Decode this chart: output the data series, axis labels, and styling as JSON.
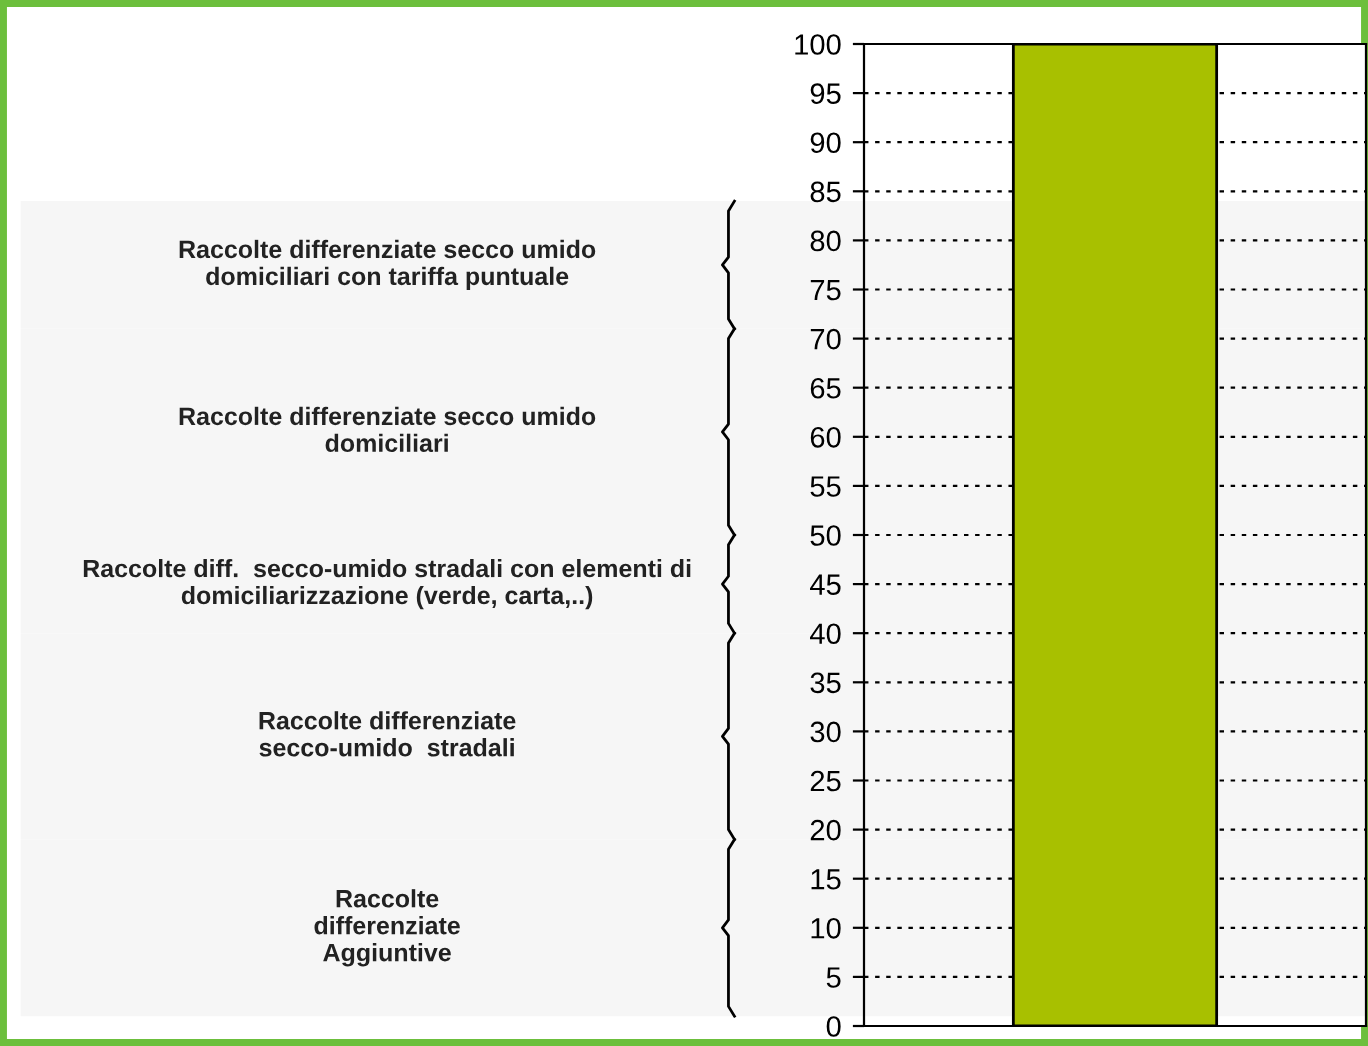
{
  "chart_data": {
    "type": "bar",
    "categories": [
      null
    ],
    "values": [
      100
    ],
    "color": "#a8c000",
    "ylim": [
      0,
      100
    ],
    "yticks": [
      0,
      5,
      10,
      15,
      20,
      25,
      30,
      35,
      40,
      45,
      50,
      55,
      60,
      65,
      70,
      75,
      80,
      85,
      90,
      95,
      100
    ],
    "grid": "y",
    "legend": false,
    "bands": [
      {
        "axis": "y",
        "from": 71,
        "to": 84,
        "label": "Raccolte differenziate secco umido\ndomiciliari con tariffa puntuale"
      },
      {
        "axis": "y",
        "from": 50,
        "to": 71,
        "label": "Raccolte differenziate secco umido\ndomiciliari"
      },
      {
        "axis": "y",
        "from": 40,
        "to": 50,
        "label": "Raccolte diff.  secco-umido stradali con elementi di\ndomiciliarizzazione (verde, carta,..)"
      },
      {
        "axis": "y",
        "from": 19,
        "to": 40,
        "label": "Raccolte differenziate\nsecco-umido  stradali"
      },
      {
        "axis": "y",
        "from": 1,
        "to": 19,
        "label": "Raccolte\ndifferenziate\nAggiuntive"
      }
    ]
  }
}
